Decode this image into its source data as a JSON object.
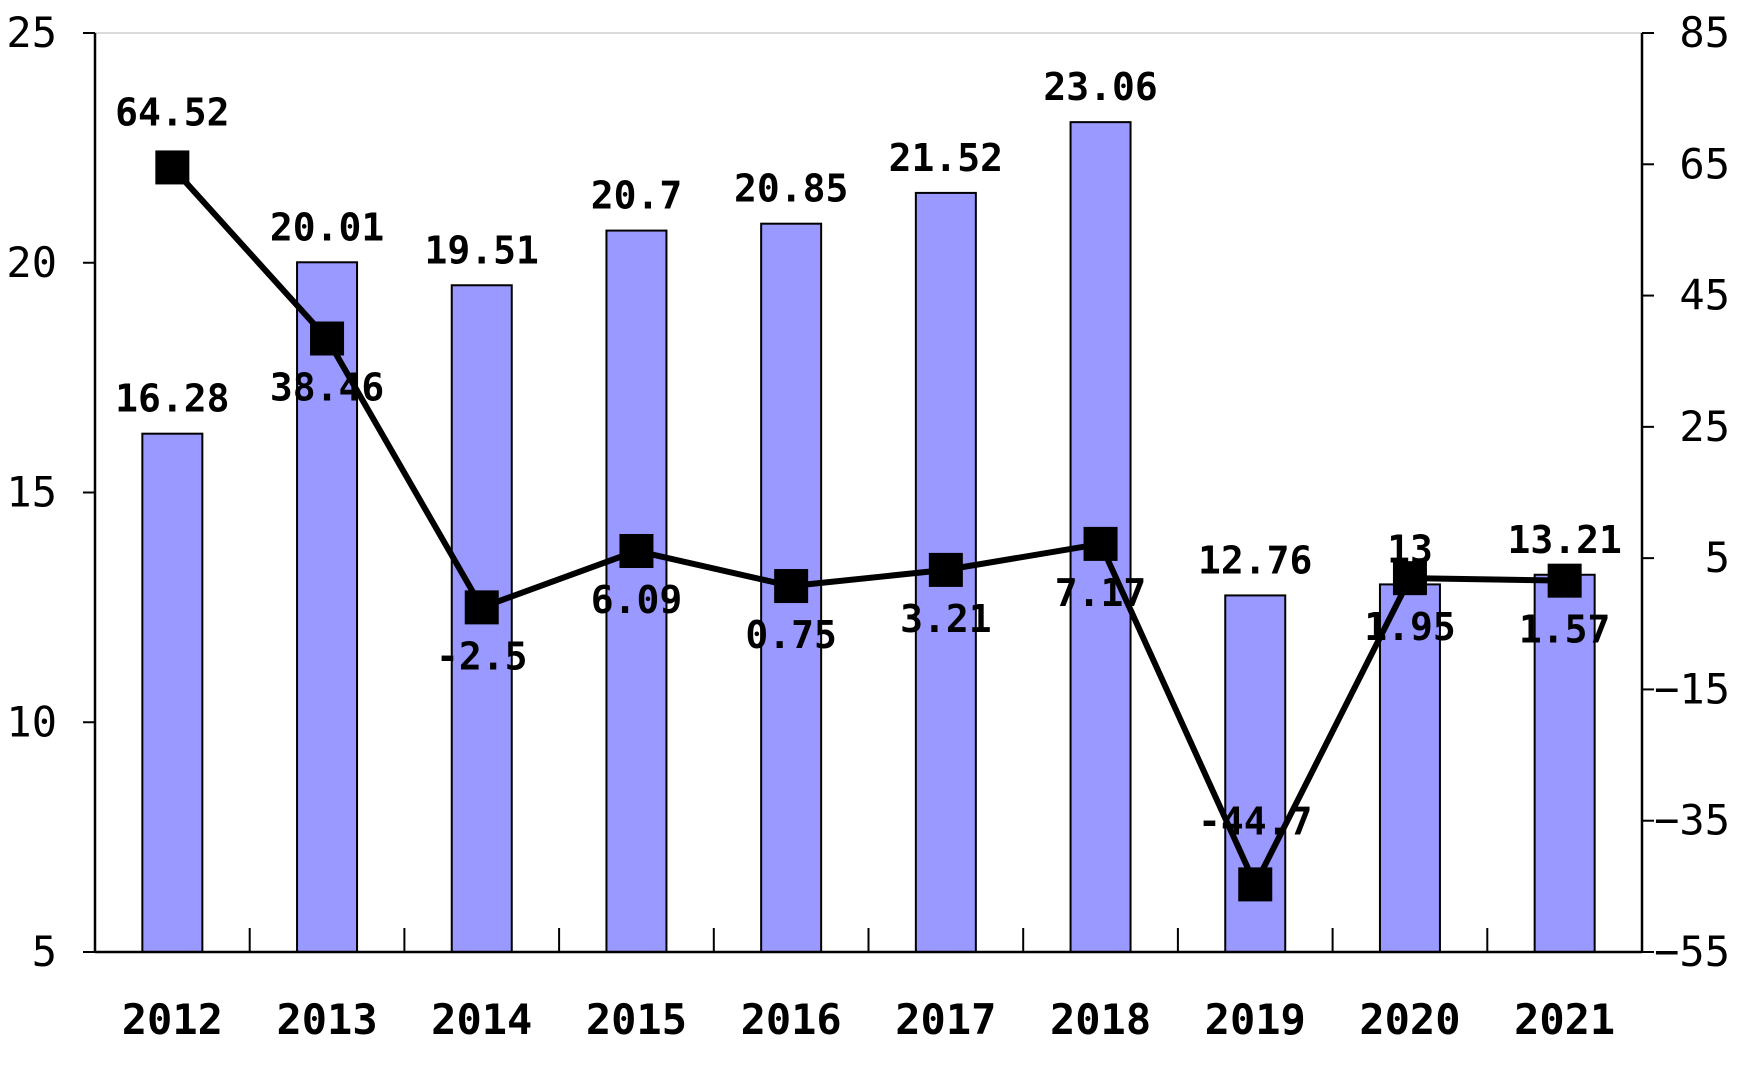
{
  "chart_data": {
    "type": "bar",
    "categories": [
      "2012",
      "2013",
      "2014",
      "2015",
      "2016",
      "2017",
      "2018",
      "2019",
      "2020",
      "2021"
    ],
    "series": [
      {
        "type": "bar",
        "axis": "left",
        "color": "#9999ff",
        "values": [
          16.28,
          20.01,
          19.51,
          20.7,
          20.85,
          21.52,
          23.06,
          12.76,
          13,
          13.21
        ],
        "labels": [
          "16.28",
          "20.01",
          "19.51",
          "20.7",
          "20.85",
          "21.52",
          "23.06",
          "12.76",
          "13",
          "13.21"
        ]
      },
      {
        "type": "line",
        "axis": "right",
        "color": "#000000",
        "marker": "square",
        "values": [
          64.52,
          38.46,
          -2.5,
          6.09,
          0.75,
          3.21,
          7.17,
          -44.7,
          1.95,
          1.57
        ],
        "labels": [
          "64.52",
          "38.46",
          "-2.5",
          "6.09",
          "0.75",
          "3.21",
          "7.17",
          "-44.7",
          "1.95",
          "1.57"
        ]
      }
    ],
    "y_left": {
      "min": 5,
      "max": 25,
      "ticks": [
        "5",
        "10",
        "15",
        "20",
        "25"
      ]
    },
    "y_right": {
      "min": -55,
      "max": 85,
      "ticks": [
        "-55",
        "-35",
        "-15",
        "5",
        "25",
        "45",
        "65",
        "85"
      ]
    },
    "grid": false,
    "legend": "none",
    "title": "",
    "xlabel": "",
    "ylabel": ""
  }
}
